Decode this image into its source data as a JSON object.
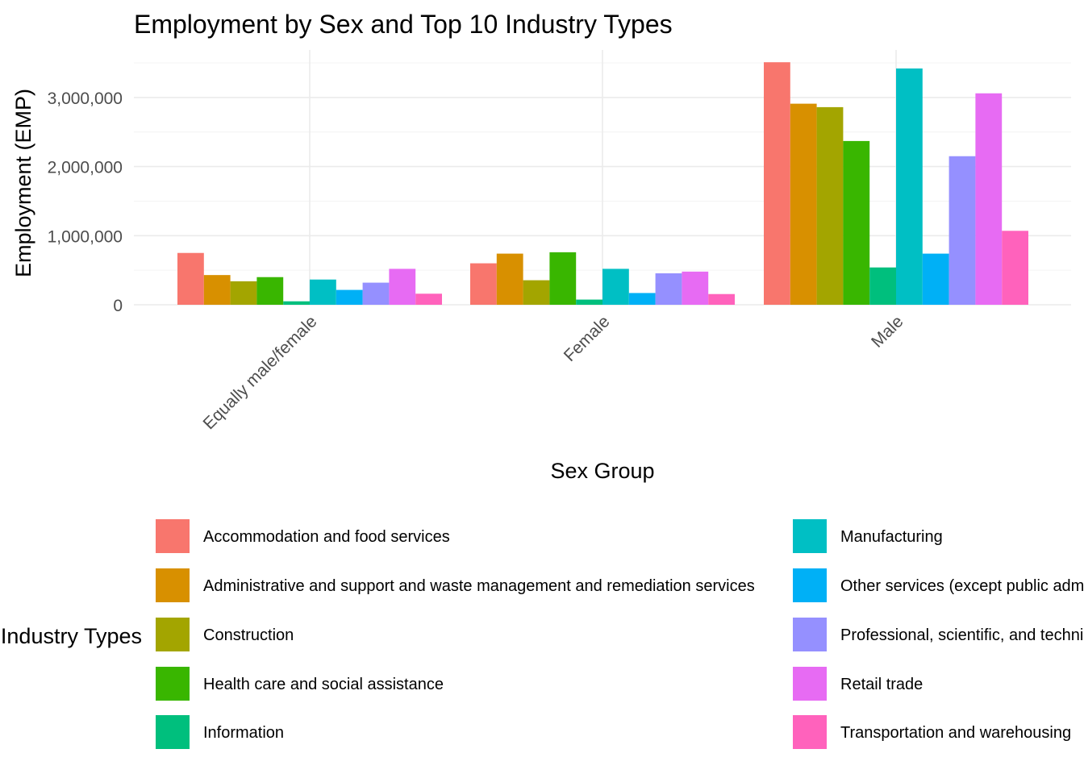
{
  "chart_data": {
    "type": "bar",
    "title": "Employment by Sex and Top 10 Industry Types",
    "xlabel": "Sex Group",
    "ylabel": "Employment (EMP)",
    "ylim": [
      0,
      3500000
    ],
    "yticks": [
      0,
      1000000,
      2000000,
      3000000
    ],
    "ytick_labels": [
      "0",
      "1,000,000",
      "2,000,000",
      "3,000,000"
    ],
    "grid": true,
    "legend_title": "Industry Types",
    "legend_position": "bottom",
    "categories": [
      "Equally male/female",
      "Female",
      "Male"
    ],
    "series": [
      {
        "name": "Accommodation and food services",
        "color": "#F8766D",
        "values": [
          750000,
          600000,
          3510000
        ]
      },
      {
        "name": "Administrative and support and waste management and remediation services",
        "color": "#D89000",
        "values": [
          430000,
          740000,
          2910000
        ]
      },
      {
        "name": "Construction",
        "color": "#A3A500",
        "values": [
          340000,
          355000,
          2860000
        ]
      },
      {
        "name": "Health care and social assistance",
        "color": "#39B600",
        "values": [
          400000,
          760000,
          2370000
        ]
      },
      {
        "name": "Information",
        "color": "#00BF7D",
        "values": [
          50000,
          75000,
          540000
        ]
      },
      {
        "name": "Manufacturing",
        "color": "#00BFC4",
        "values": [
          365000,
          520000,
          3420000
        ]
      },
      {
        "name": "Other services (except public administration)",
        "color": "#00B0F6",
        "values": [
          215000,
          170000,
          740000
        ]
      },
      {
        "name": "Professional, scientific, and technical services",
        "color": "#9590FF",
        "values": [
          320000,
          455000,
          2150000
        ]
      },
      {
        "name": "Retail trade",
        "color": "#E76BF3",
        "values": [
          520000,
          480000,
          3060000
        ]
      },
      {
        "name": "Transportation and warehousing",
        "color": "#FF62BC",
        "values": [
          160000,
          155000,
          1070000
        ]
      }
    ]
  }
}
